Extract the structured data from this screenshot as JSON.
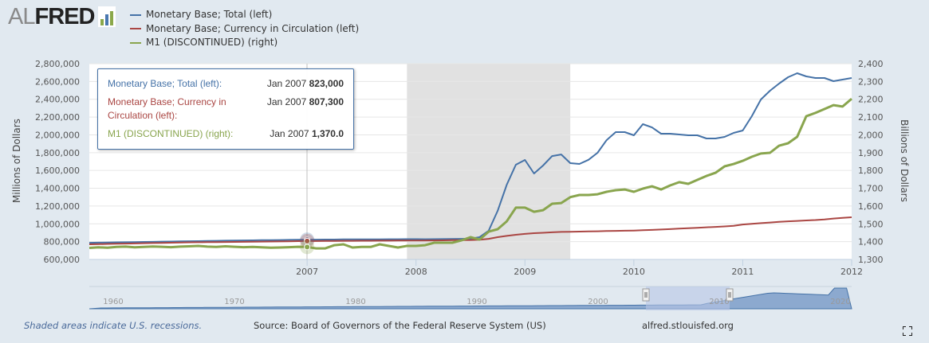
{
  "logo": {
    "text_al": "AL",
    "text_fred": "FRED"
  },
  "chart_data": {
    "type": "line",
    "x_start": "2005-01",
    "x_frequency": "monthly",
    "xlim": [
      "2005-01",
      "2012-01"
    ],
    "x_ticks": [
      "2007",
      "2008",
      "2009",
      "2010",
      "2011",
      "2012"
    ],
    "left_axis": {
      "title": "Millions of Dollars",
      "ylim": [
        600000,
        2800000
      ],
      "ticks": [
        "2,800,000",
        "2,600,000",
        "2,400,000",
        "2,200,000",
        "2,000,000",
        "1,800,000",
        "1,600,000",
        "1,400,000",
        "1,200,000",
        "1,000,000",
        "800,000",
        "600,000"
      ]
    },
    "right_axis": {
      "title": "Billions of Dollars",
      "ylim": [
        1300,
        2400
      ],
      "ticks": [
        "2,400",
        "2,300",
        "2,200",
        "2,100",
        "2,000",
        "1,900",
        "1,800",
        "1,700",
        "1,600",
        "1,500",
        "1,400",
        "1,300"
      ]
    },
    "grid": true,
    "legend_position": "top",
    "recessions": [
      {
        "start": "2007-12",
        "end": "2009-06"
      }
    ],
    "series": [
      {
        "name": "Monetary Base; Total (left)",
        "axis": "left",
        "color": "#4572a7",
        "values": [
          787000,
          789000,
          790000,
          792000,
          793000,
          795000,
          797000,
          798000,
          800000,
          801000,
          803000,
          805000,
          806000,
          808000,
          809000,
          811000,
          812000,
          814000,
          815000,
          816000,
          817000,
          818000,
          820000,
          821000,
          823000,
          823000,
          824000,
          824000,
          825000,
          825000,
          826000,
          826000,
          826000,
          827000,
          827000,
          828000,
          828000,
          827000,
          828000,
          829000,
          830000,
          832000,
          833000,
          850000,
          923000,
          1146000,
          1440000,
          1664000,
          1718000,
          1566000,
          1655000,
          1762000,
          1780000,
          1682000,
          1673000,
          1720000,
          1798000,
          1941000,
          2031000,
          2031000,
          1995000,
          2120000,
          2084000,
          2013000,
          2013000,
          2004000,
          1995000,
          1995000,
          1959000,
          1959000,
          1977000,
          2022000,
          2049000,
          2210000,
          2398000,
          2496000,
          2576000,
          2648000,
          2693000,
          2657000,
          2639000,
          2639000,
          2603000,
          2621000,
          2639000
        ]
      },
      {
        "name": "Monetary Base; Currency in Circulation (left)",
        "axis": "left",
        "color": "#aa4643",
        "values": [
          770000,
          772000,
          774000,
          776000,
          778000,
          780000,
          782000,
          784000,
          786000,
          788000,
          790000,
          792000,
          793000,
          794000,
          795000,
          796000,
          797000,
          798000,
          799000,
          800000,
          801000,
          802000,
          804000,
          806000,
          807300,
          807000,
          808000,
          808000,
          809000,
          809000,
          810000,
          810000,
          811000,
          811000,
          812000,
          813000,
          813000,
          813000,
          814000,
          815000,
          816000,
          817000,
          818000,
          822000,
          832000,
          850000,
          865000,
          877000,
          887000,
          895000,
          900000,
          905000,
          909000,
          911000,
          913000,
          915000,
          917000,
          919000,
          921000,
          923000,
          925000,
          928000,
          932000,
          936000,
          941000,
          946000,
          951000,
          956000,
          961000,
          966000,
          971000,
          978000,
          993000,
          1000000,
          1008000,
          1015000,
          1022000,
          1028000,
          1033000,
          1038000,
          1043000,
          1050000,
          1060000,
          1068000,
          1074000
        ]
      },
      {
        "name": "M1 (DISCONTINUED) (right)",
        "axis": "right",
        "color": "#89a54e",
        "values": [
          1365,
          1368,
          1366,
          1370,
          1372,
          1368,
          1370,
          1373,
          1371,
          1369,
          1372,
          1374,
          1376,
          1372,
          1370,
          1374,
          1371,
          1369,
          1370,
          1368,
          1366,
          1367,
          1369,
          1371,
          1370,
          1362,
          1362,
          1380,
          1385,
          1367,
          1370,
          1370,
          1385,
          1376,
          1367,
          1376,
          1376,
          1380,
          1394,
          1394,
          1394,
          1407,
          1425,
          1412,
          1456,
          1470,
          1514,
          1591,
          1591,
          1568,
          1577,
          1613,
          1617,
          1650,
          1662,
          1662,
          1666,
          1680,
          1689,
          1693,
          1680,
          1698,
          1711,
          1693,
          1716,
          1734,
          1725,
          1747,
          1769,
          1787,
          1823,
          1836,
          1854,
          1877,
          1895,
          1899,
          1939,
          1953,
          1989,
          2105,
          2123,
          2145,
          2167,
          2159,
          2203
        ]
      }
    ],
    "navigator": {
      "ticks": [
        "1960",
        "1970",
        "1980",
        "1990",
        "2000",
        "2010",
        "2020"
      ]
    }
  },
  "tooltip": {
    "rows": [
      {
        "label": "Monetary Base; Total (left):",
        "date": "Jan 2007",
        "value": "823,000",
        "color": "#4572a7"
      },
      {
        "label": "Monetary Base; Currency in Circulation (left):",
        "date": "Jan 2007",
        "value": "807,300",
        "color": "#aa4643"
      },
      {
        "label": "M1 (DISCONTINUED) (right):",
        "date": "Jan 2007",
        "value": "1,370.0",
        "color": "#89a54e"
      }
    ]
  },
  "footer": {
    "recession_note": "Shaded areas indicate U.S. recessions.",
    "source": "Source: Board of Governors of the Federal Reserve System (US)",
    "site": "alfred.stlouisfed.org"
  }
}
